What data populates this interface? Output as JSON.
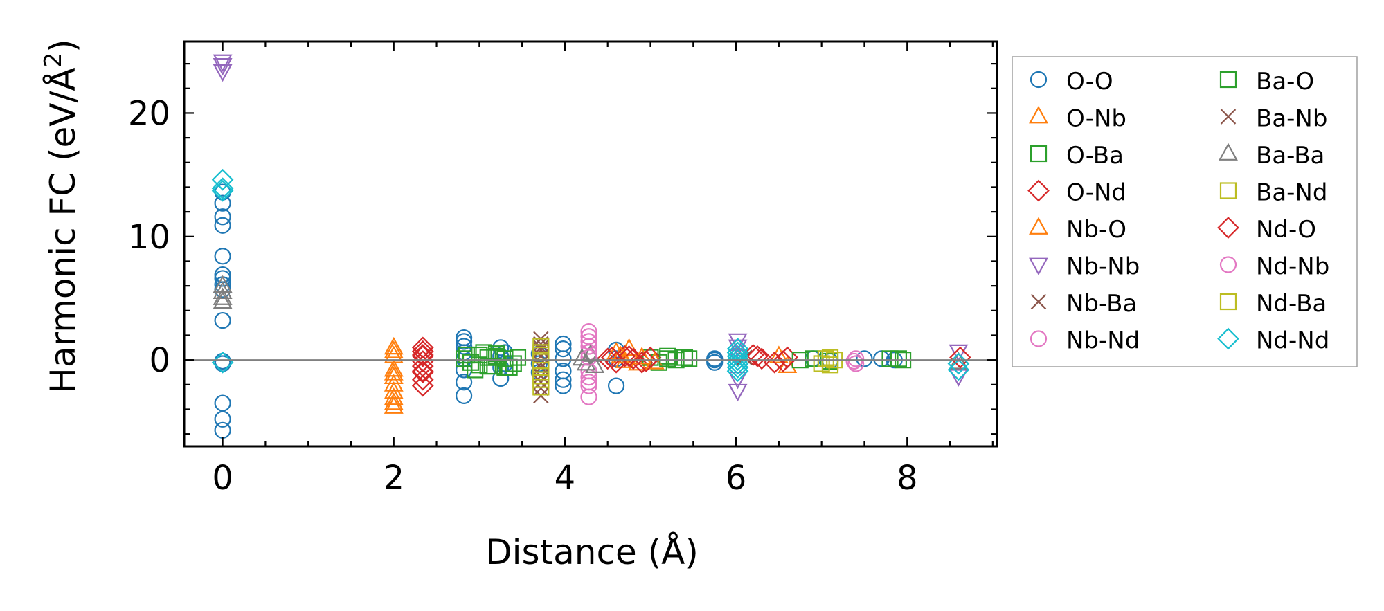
{
  "chart_data": {
    "type": "scatter",
    "title": "",
    "xlabel": "Distance (Å)",
    "ylabel_main": "Harmonic FC (eV/Å",
    "ylabel_sup": "2",
    "ylabel_close": ")",
    "xlim": [
      -0.45,
      9.05
    ],
    "ylim": [
      -7.0,
      25.8
    ],
    "xticks": [
      0,
      2,
      4,
      6,
      8
    ],
    "xtick_labels": [
      "0",
      "2",
      "4",
      "6",
      "8"
    ],
    "yticks": [
      0,
      10,
      20
    ],
    "ytick_labels": [
      "0",
      "10",
      "20"
    ],
    "x_minor_step": 0.5,
    "y_minor_step": 2,
    "zero_line": true,
    "grid": false,
    "legend_position": "right-outside",
    "legend_columns": 2,
    "series": [
      {
        "name": "O-O",
        "marker": "circle",
        "color": "#1f77b4",
        "x": [
          0,
          0,
          0,
          0,
          0,
          0,
          0,
          0,
          0,
          0,
          0,
          0,
          0,
          0,
          0,
          2.82,
          2.82,
          2.82,
          2.82,
          2.82,
          2.82,
          2.82,
          2.82,
          3.25,
          3.25,
          3.25,
          3.25,
          3.3,
          3.3,
          3.7,
          3.7,
          3.7,
          3.98,
          3.98,
          3.98,
          3.98,
          3.98,
          3.98,
          4.6,
          4.6,
          4.6,
          5.75,
          5.75,
          5.75,
          6.9,
          7.1,
          7.5,
          7.7,
          7.85
        ],
        "y": [
          13.6,
          12.7,
          11.6,
          10.9,
          8.4,
          6.9,
          6.6,
          6.1,
          5.7,
          3.2,
          -0.1,
          -3.5,
          -4.8,
          -5.7,
          -0.3,
          1.8,
          1.5,
          1.1,
          0.6,
          0.1,
          -0.8,
          -1.8,
          -2.9,
          1.0,
          0.3,
          -0.6,
          -1.5,
          0.6,
          -0.3,
          0.5,
          -0.3,
          -1.0,
          1.3,
          0.9,
          0.1,
          -0.9,
          -1.6,
          -2.1,
          0.8,
          0.1,
          -2.1,
          0.1,
          0,
          -0.2,
          0.1,
          -0.1,
          0.1,
          0.1,
          0.0
        ]
      },
      {
        "name": "O-Nb",
        "marker": "triangle-up",
        "color": "#ff7f0e",
        "x": [
          2.0,
          2.0,
          2.0,
          2.0,
          2.0,
          2.0,
          2.0,
          2.0,
          2.0,
          4.6,
          4.7,
          4.75,
          4.85,
          6.5,
          6.6
        ],
        "y": [
          1.0,
          0.7,
          -0.8,
          -1.4,
          -2.0,
          -2.6,
          -3.1,
          -3.5,
          -3.8,
          0.6,
          -0.1,
          0.9,
          -0.3,
          0.3,
          -0.5
        ]
      },
      {
        "name": "O-Ba",
        "marker": "square",
        "color": "#2ca02c",
        "x": [
          2.82,
          2.9,
          3.0,
          3.1,
          3.15,
          3.2,
          3.3,
          3.4,
          3.45,
          2.95,
          3.05,
          3.1,
          3.2,
          3.3,
          5.0,
          5.1,
          5.2,
          5.3,
          5.45,
          6.9,
          7.1,
          7.8,
          7.95
        ],
        "y": [
          0.1,
          -0.2,
          0.4,
          0.2,
          -0.5,
          0.3,
          0.1,
          -0.3,
          0.2,
          -0.8,
          0.6,
          -0.5,
          0.5,
          -0.6,
          0.2,
          -0.2,
          0.3,
          0.0,
          0.1,
          0.1,
          -0.1,
          0.1,
          0.0
        ]
      },
      {
        "name": "O-Nd",
        "marker": "diamond",
        "color": "#d62728",
        "x": [
          2.34,
          2.34,
          2.34,
          2.34,
          2.34,
          2.34,
          2.34,
          2.34,
          4.5,
          4.6,
          4.7,
          4.8,
          4.9,
          5.0,
          6.2,
          6.3,
          6.45,
          6.6
        ],
        "y": [
          1.0,
          0.7,
          0.3,
          -0.1,
          -0.5,
          -1.0,
          -1.6,
          -2.1,
          0.1,
          -0.2,
          0.3,
          0.1,
          -0.2,
          0.2,
          0.4,
          0.1,
          -0.2,
          0.2
        ]
      },
      {
        "name": "Nb-O",
        "marker": "triangle-up",
        "color": "#ff7f0e",
        "x": [
          2.0,
          2.0,
          4.65,
          4.9,
          5.05
        ],
        "y": [
          0.3,
          -1.1,
          0.3,
          0.2,
          -0.2
        ]
      },
      {
        "name": "Nb-Nb",
        "marker": "triangle-down",
        "color": "#9467bd",
        "x": [
          0,
          0,
          0,
          6.02,
          6.02,
          6.02,
          6.02,
          6.02,
          8.6,
          8.6
        ],
        "y": [
          24.2,
          23.9,
          23.4,
          1.6,
          1.1,
          0.3,
          -1.5,
          -2.5,
          0.7,
          -1.3
        ]
      },
      {
        "name": "Nb-Ba",
        "marker": "x",
        "color": "#8c564b",
        "x": [
          3.72,
          3.72,
          3.72,
          3.72,
          3.72,
          3.72,
          3.72,
          3.72
        ],
        "y": [
          1.7,
          1.3,
          0.8,
          0.3,
          -0.3,
          -1.3,
          -2.3,
          -2.9
        ]
      },
      {
        "name": "Nb-Nd",
        "marker": "circle",
        "color": "#e377c2",
        "x": [
          4.28,
          4.28,
          4.28,
          4.28,
          4.28,
          4.28,
          4.28,
          4.28,
          7.4,
          7.4
        ],
        "y": [
          2.3,
          1.9,
          1.1,
          0.6,
          -0.9,
          -1.4,
          -2.1,
          -3.0,
          0.1,
          -0.3
        ]
      },
      {
        "name": "Ba-O",
        "marker": "square",
        "color": "#2ca02c",
        "x": [
          2.85,
          3.0,
          3.2,
          3.35,
          5.2,
          5.4,
          6.75,
          7.9
        ],
        "y": [
          0.4,
          -0.4,
          0.2,
          -0.6,
          0.1,
          0.2,
          0.0,
          0.1
        ]
      },
      {
        "name": "Ba-Nb",
        "marker": "x",
        "color": "#8c564b",
        "x": [
          3.72,
          3.72,
          3.72,
          6.1
        ],
        "y": [
          1.0,
          -0.6,
          -1.8,
          0.2
        ]
      },
      {
        "name": "Ba-Ba",
        "marker": "triangle-up",
        "color": "#7f7f7f",
        "x": [
          0,
          0,
          0,
          0,
          4.2,
          4.25,
          4.3,
          4.35,
          8.6
        ],
        "y": [
          6.0,
          5.5,
          5.0,
          4.7,
          0.1,
          -0.3,
          0.4,
          -0.5,
          -0.2
        ]
      },
      {
        "name": "Ba-Nd",
        "marker": "square",
        "color": "#bcbd22",
        "x": [
          3.72,
          3.72,
          3.72,
          3.72,
          3.72,
          3.72,
          7.05,
          7.1,
          7.15
        ],
        "y": [
          1.1,
          0.6,
          0.0,
          -0.6,
          -1.3,
          -2.2,
          0.1,
          -0.4,
          0.0
        ]
      },
      {
        "name": "Nd-O",
        "marker": "diamond",
        "color": "#d62728",
        "x": [
          2.34,
          2.34,
          4.55,
          4.75,
          4.95,
          6.25,
          6.55,
          8.62
        ],
        "y": [
          0.4,
          -0.9,
          0.2,
          0.3,
          -0.1,
          0.3,
          -0.1,
          0.2
        ]
      },
      {
        "name": "Nd-Nb",
        "marker": "circle",
        "color": "#e377c2",
        "x": [
          4.28,
          4.28,
          4.28,
          7.38
        ],
        "y": [
          1.5,
          0.2,
          -1.8,
          -0.1
        ]
      },
      {
        "name": "Nd-Ba",
        "marker": "square",
        "color": "#bcbd22",
        "x": [
          3.72,
          3.72,
          7.0,
          7.1
        ],
        "y": [
          0.4,
          -1.6,
          -0.3,
          0.2
        ]
      },
      {
        "name": "Nd-Nd",
        "marker": "diamond",
        "color": "#17becf",
        "x": [
          0,
          0,
          0,
          0,
          6.02,
          6.02,
          6.02,
          6.02,
          6.02,
          6.02,
          6.02,
          8.6,
          8.6
        ],
        "y": [
          14.6,
          13.9,
          13.7,
          -0.2,
          0.9,
          0.6,
          0.3,
          0.0,
          -0.3,
          -0.6,
          -0.9,
          -0.3,
          -0.8
        ]
      }
    ]
  }
}
